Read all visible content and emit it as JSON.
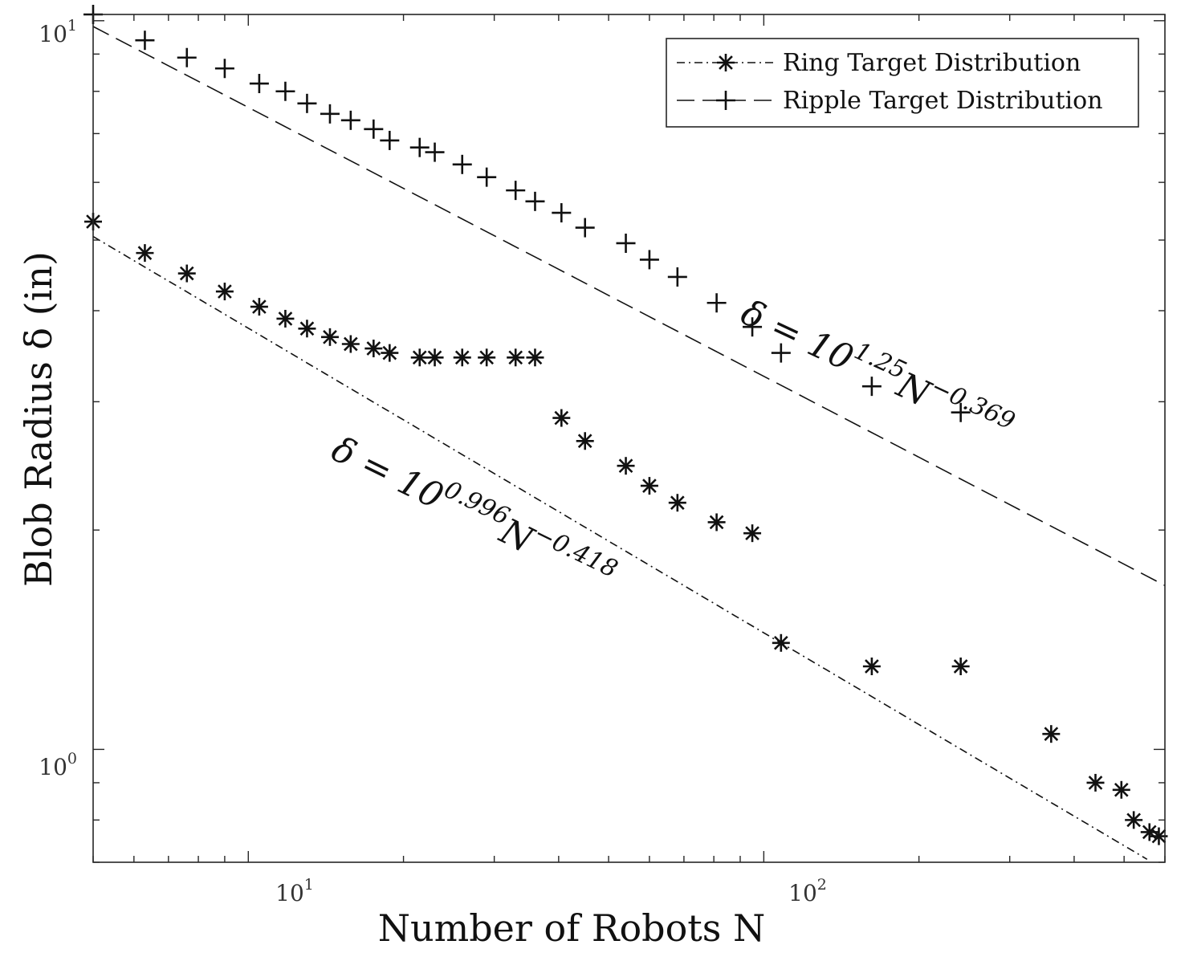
{
  "chart_data": {
    "type": "scatter",
    "xscale": "log",
    "yscale": "log",
    "xlim": [
      5,
      600
    ],
    "ylim": [
      0.7,
      10.2
    ],
    "xticks": [
      {
        "value": 10,
        "base": "10",
        "exp": "1"
      },
      {
        "value": 100,
        "base": "10",
        "exp": "2"
      }
    ],
    "yticks": [
      {
        "value": 1,
        "base": "10",
        "exp": "0"
      },
      {
        "value": 10,
        "base": "10",
        "exp": "1"
      }
    ],
    "xlabel": "Number of Robots N",
    "ylabel": "Blob Radius δ (in)",
    "grid": false,
    "legend_position": "top-right",
    "series": [
      {
        "name": "Ring Target Distribution",
        "marker": "asterisk",
        "points": [
          [
            5,
            5.3
          ],
          [
            6.3,
            4.8
          ],
          [
            7.6,
            4.5
          ],
          [
            9,
            4.25
          ],
          [
            10.5,
            4.05
          ],
          [
            11.8,
            3.9
          ],
          [
            13,
            3.78
          ],
          [
            14.4,
            3.68
          ],
          [
            15.8,
            3.6
          ],
          [
            17.5,
            3.55
          ],
          [
            18.8,
            3.5
          ],
          [
            21.5,
            3.45
          ],
          [
            23,
            3.45
          ],
          [
            26,
            3.45
          ],
          [
            29,
            3.45
          ],
          [
            33,
            3.45
          ],
          [
            36,
            3.45
          ],
          [
            40.5,
            2.85
          ],
          [
            45,
            2.65
          ],
          [
            54,
            2.45
          ],
          [
            60,
            2.3
          ],
          [
            68,
            2.18
          ],
          [
            81,
            2.05
          ],
          [
            95,
            1.98
          ],
          [
            108,
            1.4
          ],
          [
            162,
            1.3
          ],
          [
            241,
            1.3
          ],
          [
            361,
            1.05
          ],
          [
            440,
            0.9
          ],
          [
            494,
            0.88
          ],
          [
            522,
            0.8
          ],
          [
            560,
            0.77
          ],
          [
            584,
            0.76
          ]
        ]
      },
      {
        "name": "Ripple Target Distribution",
        "marker": "plus",
        "points": [
          [
            5,
            10.2
          ],
          [
            6.3,
            9.4
          ],
          [
            7.6,
            8.9
          ],
          [
            9,
            8.6
          ],
          [
            10.5,
            8.2
          ],
          [
            11.8,
            8.0
          ],
          [
            13,
            7.7
          ],
          [
            14.4,
            7.45
          ],
          [
            15.8,
            7.3
          ],
          [
            17.5,
            7.1
          ],
          [
            18.8,
            6.85
          ],
          [
            21.5,
            6.7
          ],
          [
            23,
            6.6
          ],
          [
            26,
            6.35
          ],
          [
            29,
            6.1
          ],
          [
            33,
            5.85
          ],
          [
            36,
            5.65
          ],
          [
            40.5,
            5.45
          ],
          [
            45,
            5.2
          ],
          [
            54,
            4.95
          ],
          [
            60,
            4.7
          ],
          [
            68,
            4.45
          ],
          [
            81,
            4.1
          ],
          [
            95,
            3.8
          ],
          [
            108,
            3.5
          ],
          [
            162,
            3.15
          ],
          [
            241,
            2.9
          ]
        ]
      }
    ],
    "fits": [
      {
        "name": "Ring fit",
        "style": "dash-dot",
        "coef_log10": 0.996,
        "exponent": -0.418
      },
      {
        "name": "Ripple fit",
        "style": "dashed",
        "coef_log10": 1.25,
        "exponent": -0.369
      }
    ],
    "annotations": [
      {
        "id": "ripple",
        "prefix": "δ = 10",
        "exp1": "1.25",
        "mid": "N",
        "exp2": "−0.369"
      },
      {
        "id": "ring",
        "prefix": "δ = 10",
        "exp1": "0.996",
        "mid": "N",
        "exp2": "−0.418"
      }
    ]
  }
}
